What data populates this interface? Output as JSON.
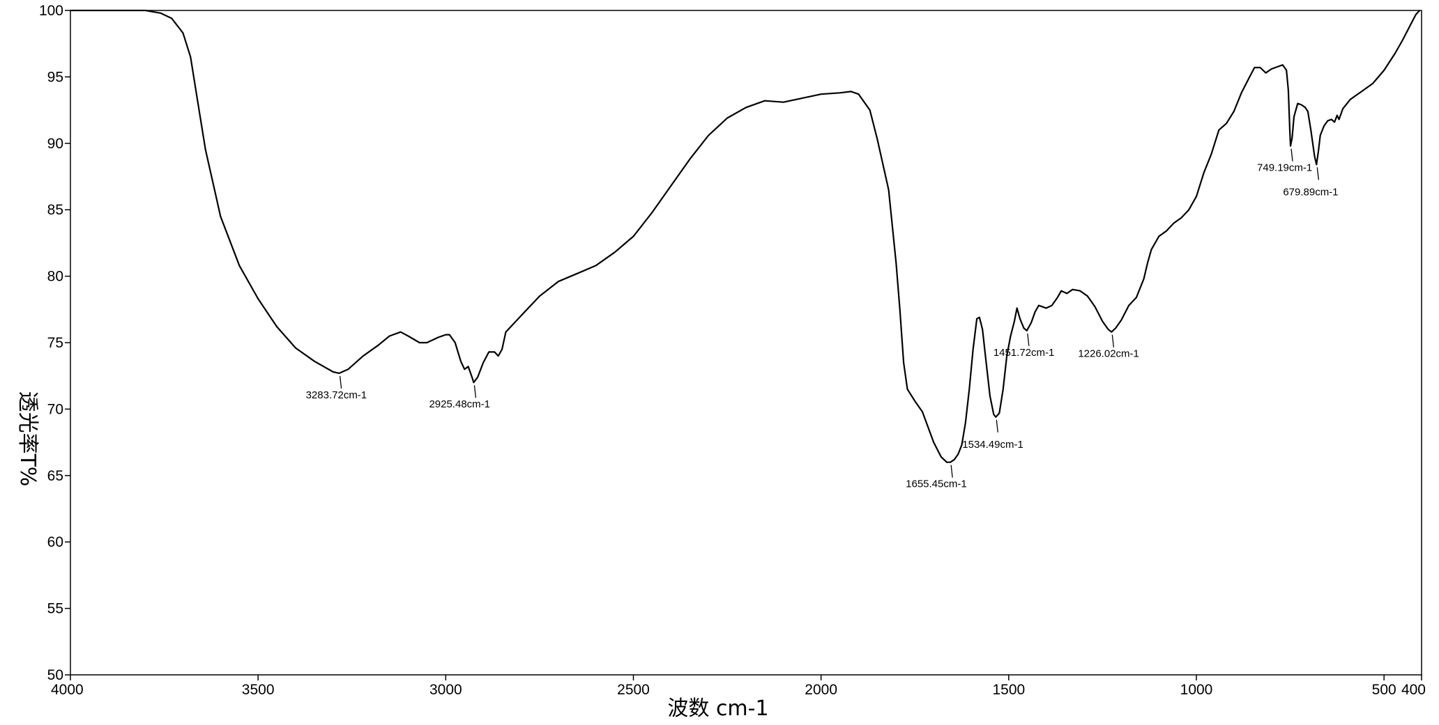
{
  "chart_data": {
    "type": "line",
    "title": "",
    "xlabel": "波数 cm-1",
    "ylabel": "透光率T%",
    "xlim": [
      4000,
      400
    ],
    "ylim": [
      50,
      100
    ],
    "x_reversed": true,
    "grid": false,
    "legend": "none",
    "line_color": "#000000",
    "xticks": [
      4000,
      3500,
      3000,
      2500,
      2000,
      1500,
      1000,
      500,
      400
    ],
    "yticks": [
      50,
      55,
      60,
      65,
      70,
      75,
      80,
      85,
      90,
      95,
      100
    ],
    "series": [
      {
        "points": [
          [
            4000,
            100.0
          ],
          [
            3900,
            100.0
          ],
          [
            3800,
            100.0
          ],
          [
            3760,
            99.8
          ],
          [
            3730,
            99.4
          ],
          [
            3700,
            98.3
          ],
          [
            3680,
            96.5
          ],
          [
            3660,
            93.0
          ],
          [
            3640,
            89.5
          ],
          [
            3620,
            87.0
          ],
          [
            3600,
            84.5
          ],
          [
            3550,
            80.8
          ],
          [
            3500,
            78.3
          ],
          [
            3450,
            76.2
          ],
          [
            3400,
            74.6
          ],
          [
            3350,
            73.6
          ],
          [
            3300,
            72.8
          ],
          [
            3283.72,
            72.7
          ],
          [
            3260,
            73.0
          ],
          [
            3220,
            74.0
          ],
          [
            3180,
            74.8
          ],
          [
            3150,
            75.5
          ],
          [
            3120,
            75.8
          ],
          [
            3100,
            75.5
          ],
          [
            3070,
            75.0
          ],
          [
            3050,
            75.0
          ],
          [
            3020,
            75.4
          ],
          [
            3000,
            75.6
          ],
          [
            2990,
            75.6
          ],
          [
            2975,
            75.0
          ],
          [
            2960,
            73.6
          ],
          [
            2950,
            73.0
          ],
          [
            2940,
            73.2
          ],
          [
            2930,
            72.4
          ],
          [
            2925.48,
            72.0
          ],
          [
            2915,
            72.4
          ],
          [
            2900,
            73.5
          ],
          [
            2885,
            74.3
          ],
          [
            2870,
            74.3
          ],
          [
            2860,
            74.0
          ],
          [
            2850,
            74.5
          ],
          [
            2840,
            75.8
          ],
          [
            2800,
            77.0
          ],
          [
            2750,
            78.5
          ],
          [
            2700,
            79.6
          ],
          [
            2650,
            80.2
          ],
          [
            2600,
            80.8
          ],
          [
            2550,
            81.8
          ],
          [
            2500,
            83.0
          ],
          [
            2450,
            84.8
          ],
          [
            2400,
            86.8
          ],
          [
            2350,
            88.8
          ],
          [
            2300,
            90.6
          ],
          [
            2250,
            91.9
          ],
          [
            2200,
            92.7
          ],
          [
            2150,
            93.2
          ],
          [
            2100,
            93.1
          ],
          [
            2050,
            93.4
          ],
          [
            2000,
            93.7
          ],
          [
            1950,
            93.8
          ],
          [
            1920,
            93.9
          ],
          [
            1900,
            93.7
          ],
          [
            1870,
            92.5
          ],
          [
            1850,
            90.3
          ],
          [
            1820,
            86.5
          ],
          [
            1800,
            81.0
          ],
          [
            1790,
            77.5
          ],
          [
            1780,
            73.5
          ],
          [
            1770,
            71.5
          ],
          [
            1750,
            70.6
          ],
          [
            1730,
            69.8
          ],
          [
            1700,
            67.5
          ],
          [
            1680,
            66.4
          ],
          [
            1665,
            66.0
          ],
          [
            1655.45,
            66.0
          ],
          [
            1645,
            66.2
          ],
          [
            1635,
            66.6
          ],
          [
            1625,
            67.3
          ],
          [
            1615,
            69.0
          ],
          [
            1605,
            71.5
          ],
          [
            1595,
            74.5
          ],
          [
            1585,
            76.8
          ],
          [
            1578,
            76.9
          ],
          [
            1570,
            76.0
          ],
          [
            1560,
            73.5
          ],
          [
            1550,
            71.0
          ],
          [
            1540,
            69.6
          ],
          [
            1534.49,
            69.4
          ],
          [
            1525,
            69.7
          ],
          [
            1515,
            71.5
          ],
          [
            1505,
            74.0
          ],
          [
            1495,
            75.5
          ],
          [
            1485,
            76.6
          ],
          [
            1478,
            77.6
          ],
          [
            1470,
            76.8
          ],
          [
            1460,
            76.1
          ],
          [
            1451.72,
            75.9
          ],
          [
            1440,
            76.5
          ],
          [
            1430,
            77.3
          ],
          [
            1420,
            77.8
          ],
          [
            1400,
            77.6
          ],
          [
            1385,
            77.8
          ],
          [
            1370,
            78.4
          ],
          [
            1360,
            78.9
          ],
          [
            1345,
            78.7
          ],
          [
            1330,
            79.0
          ],
          [
            1310,
            78.9
          ],
          [
            1290,
            78.5
          ],
          [
            1270,
            77.7
          ],
          [
            1250,
            76.6
          ],
          [
            1235,
            76.0
          ],
          [
            1226.02,
            75.8
          ],
          [
            1215,
            76.1
          ],
          [
            1200,
            76.7
          ],
          [
            1180,
            77.8
          ],
          [
            1160,
            78.4
          ],
          [
            1140,
            79.8
          ],
          [
            1130,
            81.0
          ],
          [
            1120,
            82.0
          ],
          [
            1100,
            83.0
          ],
          [
            1080,
            83.4
          ],
          [
            1060,
            84.0
          ],
          [
            1040,
            84.4
          ],
          [
            1020,
            85.0
          ],
          [
            1000,
            86.0
          ],
          [
            980,
            87.8
          ],
          [
            960,
            89.2
          ],
          [
            940,
            91.0
          ],
          [
            920,
            91.5
          ],
          [
            900,
            92.4
          ],
          [
            880,
            93.8
          ],
          [
            860,
            94.9
          ],
          [
            845,
            95.7
          ],
          [
            830,
            95.7
          ],
          [
            815,
            95.3
          ],
          [
            800,
            95.6
          ],
          [
            780,
            95.8
          ],
          [
            770,
            95.9
          ],
          [
            760,
            95.5
          ],
          [
            755,
            94.0
          ],
          [
            751,
            91.0
          ],
          [
            749.19,
            89.8
          ],
          [
            745,
            90.4
          ],
          [
            740,
            92.0
          ],
          [
            730,
            93.0
          ],
          [
            720,
            92.9
          ],
          [
            710,
            92.7
          ],
          [
            703,
            92.4
          ],
          [
            695,
            91.0
          ],
          [
            685,
            89.0
          ],
          [
            679.89,
            88.4
          ],
          [
            675,
            89.4
          ],
          [
            670,
            90.6
          ],
          [
            660,
            91.3
          ],
          [
            650,
            91.7
          ],
          [
            640,
            91.8
          ],
          [
            632,
            91.6
          ],
          [
            625,
            92.1
          ],
          [
            620,
            91.8
          ],
          [
            610,
            92.6
          ],
          [
            590,
            93.3
          ],
          [
            560,
            93.9
          ],
          [
            530,
            94.5
          ],
          [
            500,
            95.5
          ],
          [
            470,
            96.8
          ],
          [
            450,
            97.8
          ],
          [
            430,
            98.9
          ],
          [
            415,
            99.7
          ],
          [
            405,
            100.0
          ]
        ]
      }
    ],
    "annotations": [
      {
        "x": 3283.72,
        "y": 72.7,
        "label": "3283.72cm-1",
        "anchor": "start",
        "dx": -0.6,
        "dy": 0
      },
      {
        "x": 2925.48,
        "y": 72.0,
        "label": "2925.48cm-1",
        "anchor": "start",
        "dx": -0.8,
        "dy": 0
      },
      {
        "x": 1655.45,
        "y": 66.0,
        "label": "1655.45cm-1",
        "anchor": "start",
        "dx": -0.8,
        "dy": 0
      },
      {
        "x": 1534.49,
        "y": 69.4,
        "label": "1534.49cm-1",
        "anchor": "start",
        "dx": -0.6,
        "dy": 1
      },
      {
        "x": 1451.72,
        "y": 75.9,
        "label": "1451.72cm-1",
        "anchor": "start",
        "dx": -0.6,
        "dy": 0
      },
      {
        "x": 1226.02,
        "y": 75.8,
        "label": "1226.02cm-1",
        "anchor": "start",
        "dx": -0.6,
        "dy": 0
      },
      {
        "x": 749.19,
        "y": 89.8,
        "label": "749.19cm-1",
        "anchor": "start",
        "dx": -0.6,
        "dy": 0
      },
      {
        "x": 679.89,
        "y": 88.4,
        "label": "679.89cm-1",
        "anchor": "start",
        "dx": -0.6,
        "dy": 1
      }
    ]
  }
}
